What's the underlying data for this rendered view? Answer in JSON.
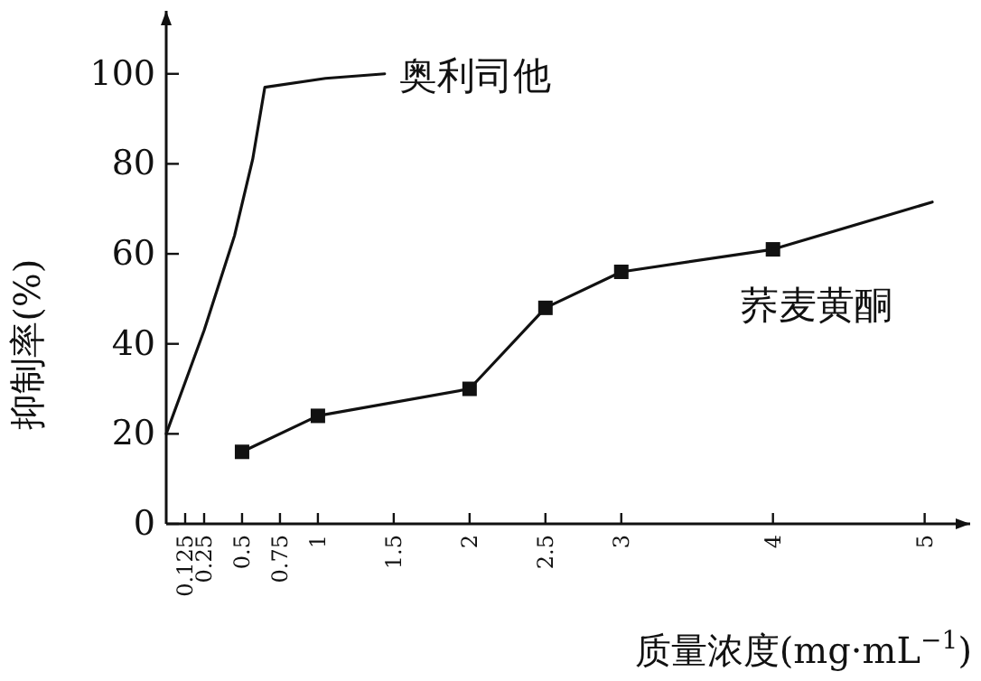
{
  "chart_data": {
    "type": "line",
    "xlabel": "质量浓度(mg·mL$^{−1}$)",
    "ylabel": "抑制率(%)",
    "xlim": [
      0,
      5.3
    ],
    "ylim": [
      0,
      114
    ],
    "xticks": [
      0.125,
      0.25,
      0.5,
      0.75,
      1,
      1.5,
      2,
      2.5,
      3,
      4,
      5
    ],
    "yticks": [
      0,
      20,
      40,
      60,
      80,
      100
    ],
    "series": [
      {
        "name": "奥利司他",
        "color": "#111111",
        "marker": "none",
        "x": [
          0,
          0.12,
          0.25,
          0.45,
          0.57,
          0.65,
          1.05,
          1.44
        ],
        "values": [
          20,
          31,
          43,
          64,
          81,
          97,
          99,
          100
        ]
      },
      {
        "name": "荞麦黄酮",
        "color": "#111111",
        "marker": "square",
        "x": [
          0.5,
          1,
          2,
          2.5,
          3,
          4
        ],
        "values": [
          16,
          24,
          30,
          48,
          56,
          61
        ]
      },
      {
        "color": "#111111",
        "marker": "none",
        "x": [
          4,
          5.05
        ],
        "values": [
          61,
          71.5
        ]
      }
    ]
  }
}
